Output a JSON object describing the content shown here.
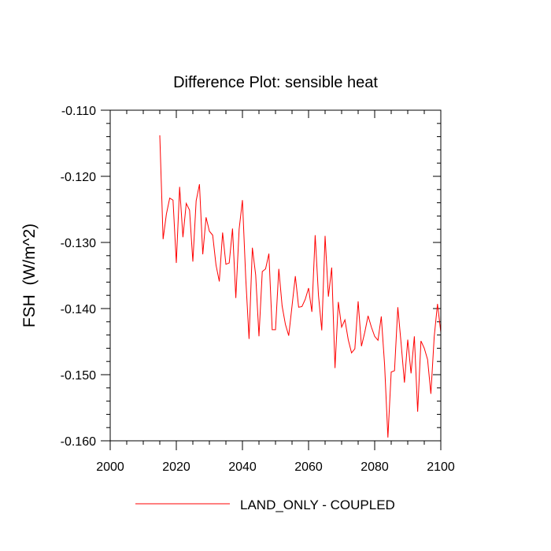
{
  "chart_data": {
    "type": "line",
    "title": "Difference Plot: sensible heat",
    "xlabel": "",
    "ylabel": "FSH  (W/m^2)",
    "xlim": [
      2000,
      2100
    ],
    "ylim": [
      -0.16,
      -0.11
    ],
    "x_ticks": [
      2000,
      2020,
      2040,
      2060,
      2080,
      2100
    ],
    "y_ticks": [
      -0.11,
      -0.12,
      -0.13,
      -0.14,
      -0.15,
      -0.16
    ],
    "x_tick_labels": [
      "2000",
      "2020",
      "2040",
      "2060",
      "2080",
      "2100"
    ],
    "y_tick_labels": [
      "-0.110",
      "-0.120",
      "-0.130",
      "-0.140",
      "-0.150",
      "-0.160"
    ],
    "grid": false,
    "legend_position": "bottom",
    "series": [
      {
        "name": "LAND_ONLY - COUPLED",
        "color": "#ff0000",
        "x": [
          2015,
          2016,
          2017,
          2018,
          2019,
          2020,
          2021,
          2022,
          2023,
          2024,
          2025,
          2026,
          2027,
          2028,
          2029,
          2030,
          2031,
          2032,
          2033,
          2034,
          2035,
          2036,
          2037,
          2038,
          2039,
          2040,
          2041,
          2042,
          2043,
          2044,
          2045,
          2046,
          2047,
          2048,
          2049,
          2050,
          2051,
          2052,
          2053,
          2054,
          2055,
          2056,
          2057,
          2058,
          2059,
          2060,
          2061,
          2062,
          2063,
          2064,
          2065,
          2066,
          2067,
          2068,
          2069,
          2070,
          2071,
          2072,
          2073,
          2074,
          2075,
          2076,
          2077,
          2078,
          2079,
          2080,
          2081,
          2082,
          2083,
          2084,
          2085,
          2086,
          2087,
          2088,
          2089,
          2090,
          2091,
          2092,
          2093,
          2094,
          2095,
          2096,
          2097,
          2098,
          2099,
          2100
        ],
        "values": [
          -0.1138,
          -0.1295,
          -0.1257,
          -0.1233,
          -0.1236,
          -0.1331,
          -0.1216,
          -0.1292,
          -0.1241,
          -0.1251,
          -0.1329,
          -0.1237,
          -0.1212,
          -0.1318,
          -0.1262,
          -0.1283,
          -0.1289,
          -0.1334,
          -0.1359,
          -0.1285,
          -0.1333,
          -0.1331,
          -0.1279,
          -0.1384,
          -0.128,
          -0.1236,
          -0.1354,
          -0.1446,
          -0.1308,
          -0.1349,
          -0.1442,
          -0.1344,
          -0.134,
          -0.1317,
          -0.1432,
          -0.1432,
          -0.134,
          -0.1396,
          -0.1424,
          -0.1441,
          -0.1396,
          -0.1351,
          -0.1398,
          -0.1397,
          -0.1386,
          -0.1369,
          -0.1405,
          -0.1289,
          -0.138,
          -0.1433,
          -0.129,
          -0.1382,
          -0.1338,
          -0.149,
          -0.139,
          -0.1428,
          -0.1417,
          -0.1447,
          -0.1467,
          -0.1461,
          -0.1389,
          -0.1457,
          -0.1436,
          -0.1411,
          -0.1428,
          -0.1442,
          -0.1448,
          -0.1412,
          -0.1485,
          -0.1595,
          -0.1496,
          -0.1494,
          -0.1398,
          -0.1453,
          -0.1512,
          -0.1447,
          -0.1498,
          -0.1442,
          -0.1556,
          -0.1449,
          -0.146,
          -0.1477,
          -0.1529,
          -0.1443,
          -0.1393,
          -0.1436
        ]
      }
    ]
  }
}
